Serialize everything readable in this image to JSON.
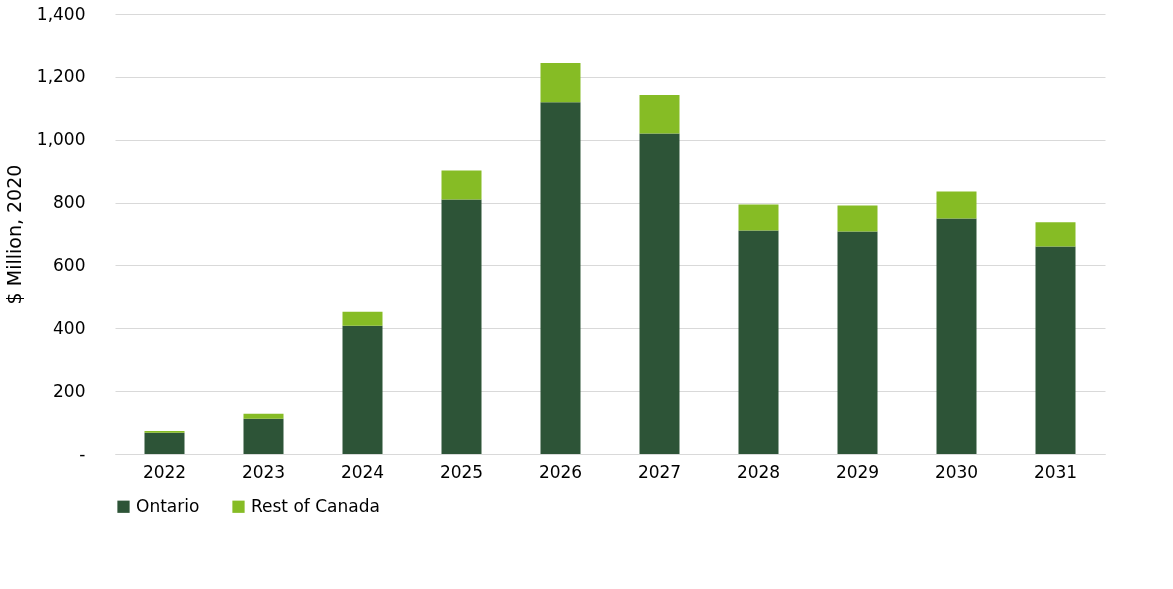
{
  "chart_data": {
    "type": "bar",
    "stacked": true,
    "ylabel": "$ Million, 2020",
    "categories": [
      "2022",
      "2023",
      "2024",
      "2025",
      "2026",
      "2027",
      "2028",
      "2029",
      "2030",
      "2031"
    ],
    "series": [
      {
        "name": "Ontario",
        "color": "#2d5437",
        "values": [
          68,
          112,
          408,
          810,
          1119,
          1020,
          711,
          708,
          749,
          660
        ]
      },
      {
        "name": "Rest of Canada",
        "color": "#86bc25",
        "values": [
          5,
          16,
          45,
          92,
          125,
          122,
          83,
          83,
          86,
          77
        ]
      }
    ],
    "ylim": [
      0,
      1400
    ],
    "yticks": [
      {
        "value": 0,
        "label": "-"
      },
      {
        "value": 200,
        "label": "200"
      },
      {
        "value": 400,
        "label": "400"
      },
      {
        "value": 600,
        "label": "600"
      },
      {
        "value": 800,
        "label": "800"
      },
      {
        "value": 1000,
        "label": "1,000"
      },
      {
        "value": 1200,
        "label": "1,200"
      },
      {
        "value": 1400,
        "label": "1,400"
      }
    ],
    "grid": "y",
    "legend": "bottom"
  }
}
